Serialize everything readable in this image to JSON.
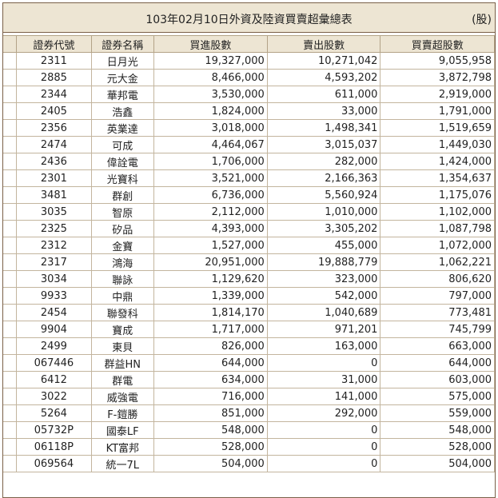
{
  "title": "103年02月10日外資及陸資買賣超彙總表",
  "unit": "(股)",
  "headers": [
    "證券代號",
    "證券名稱",
    "買進股數",
    "賣出股數",
    "買賣超股數"
  ],
  "rows": [
    [
      "2311",
      "日月光",
      "19,327,000",
      "10,271,042",
      "9,055,958"
    ],
    [
      "2885",
      "元大金",
      "8,466,000",
      "4,593,202",
      "3,872,798"
    ],
    [
      "2344",
      "華邦電",
      "3,530,000",
      "611,000",
      "2,919,000"
    ],
    [
      "2405",
      "浩鑫",
      "1,824,000",
      "33,000",
      "1,791,000"
    ],
    [
      "2356",
      "英業達",
      "3,018,000",
      "1,498,341",
      "1,519,659"
    ],
    [
      "2474",
      "可成",
      "4,464,067",
      "3,015,037",
      "1,449,030"
    ],
    [
      "2436",
      "偉詮電",
      "1,706,000",
      "282,000",
      "1,424,000"
    ],
    [
      "2301",
      "光寶科",
      "3,521,000",
      "2,166,363",
      "1,354,637"
    ],
    [
      "3481",
      "群創",
      "6,736,000",
      "5,560,924",
      "1,175,076"
    ],
    [
      "3035",
      "智原",
      "2,112,000",
      "1,010,000",
      "1,102,000"
    ],
    [
      "2325",
      "矽品",
      "4,393,000",
      "3,305,202",
      "1,087,798"
    ],
    [
      "2312",
      "金寶",
      "1,527,000",
      "455,000",
      "1,072,000"
    ],
    [
      "2317",
      "鴻海",
      "20,951,000",
      "19,888,779",
      "1,062,221"
    ],
    [
      "3034",
      "聯詠",
      "1,129,620",
      "323,000",
      "806,620"
    ],
    [
      "9933",
      "中鼎",
      "1,339,000",
      "542,000",
      "797,000"
    ],
    [
      "2454",
      "聯發科",
      "1,814,170",
      "1,040,689",
      "773,481"
    ],
    [
      "9904",
      "寶成",
      "1,717,000",
      "971,201",
      "745,799"
    ],
    [
      "2499",
      "東貝",
      "826,000",
      "163,000",
      "663,000"
    ],
    [
      "067446",
      "群益HN",
      "644,000",
      "0",
      "644,000"
    ],
    [
      "6412",
      "群電",
      "634,000",
      "31,000",
      "603,000"
    ],
    [
      "3022",
      "威強電",
      "716,000",
      "141,000",
      "575,000"
    ],
    [
      "5264",
      "F-鎧勝",
      "851,000",
      "292,000",
      "559,000"
    ],
    [
      "05732P",
      "國泰LF",
      "548,000",
      "0",
      "548,000"
    ],
    [
      "06118P",
      "KT富邦",
      "528,000",
      "0",
      "528,000"
    ],
    [
      "069564",
      "統一7L",
      "504,000",
      "0",
      "504,000"
    ]
  ],
  "colors": {
    "header_bg": "#ede5d3",
    "border_dark": "#7a6048",
    "border_light": "#c3b59e"
  }
}
